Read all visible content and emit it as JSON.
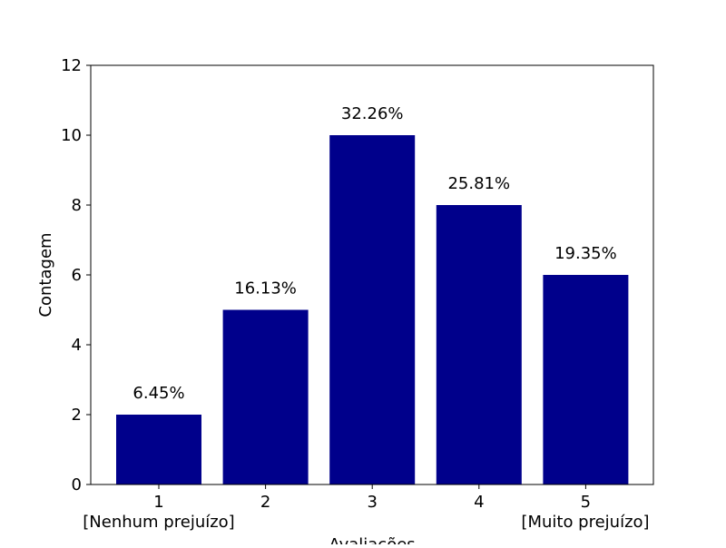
{
  "chart_data": {
    "type": "bar",
    "categories": [
      "1",
      "2",
      "3",
      "4",
      "5"
    ],
    "values": [
      2,
      5,
      10,
      8,
      6
    ],
    "data_labels": [
      "6.45%",
      "16.13%",
      "32.26%",
      "25.81%",
      "19.35%"
    ],
    "xlabel": "Avaliações",
    "ylabel": "Contagem",
    "ylim": [
      0,
      12
    ],
    "yticks": [
      0,
      2,
      4,
      6,
      8,
      10,
      12
    ],
    "x_extremes": {
      "left": "[Nenhum prejuízo]",
      "right": "[Muito prejuízo]"
    },
    "bar_color": "#00008b",
    "grid": false,
    "legend": "none"
  }
}
